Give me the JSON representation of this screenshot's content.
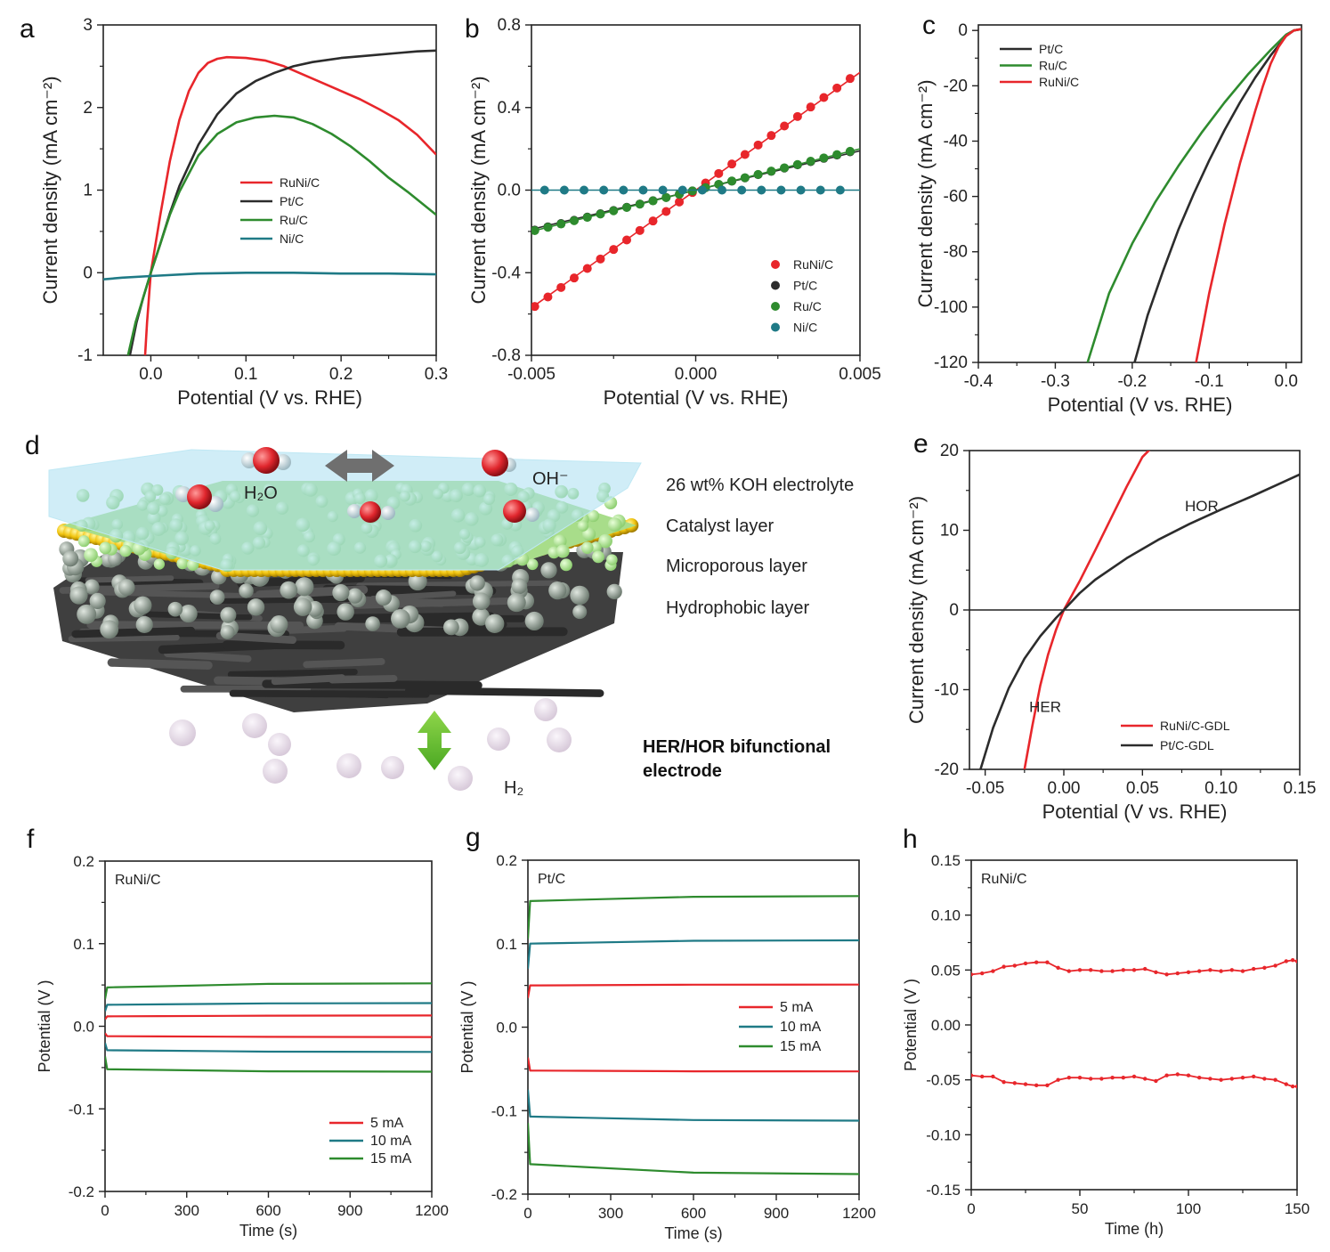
{
  "colors": {
    "red": "#e8262b",
    "black": "#2c2c2c",
    "green": "#2e8b2e",
    "teal": "#1f7a86",
    "axis": "#222222"
  },
  "panel_d": {
    "label": "d",
    "layers": [
      "26 wt% KOH electrolyte",
      "Catalyst layer",
      "Microporous layer",
      "Hydrophobic layer"
    ],
    "h2o": "H₂O",
    "oh": "OH⁻",
    "h2": "H₂",
    "electrode_line1": "HER/HOR bifunctional",
    "electrode_line2": "electrode"
  },
  "chart_data": [
    {
      "id": "a",
      "label": "a",
      "type": "line",
      "xlabel": "Potential (V vs. RHE)",
      "ylabel": "Current density (mA cm⁻²)",
      "xlim": [
        -0.05,
        0.3
      ],
      "ylim": [
        -1,
        3
      ],
      "xticks": [
        "0.0",
        "0.1",
        "0.2",
        "0.3"
      ],
      "xtick_values": [
        0,
        0.1,
        0.2,
        0.3
      ],
      "yticks": [
        "-1",
        "0",
        "1",
        "2",
        "3"
      ],
      "ytick_values": [
        -1,
        0,
        1,
        2,
        3
      ],
      "legend": "center",
      "series": [
        {
          "name": "RuNi/C",
          "color": "red",
          "x": [
            -0.006,
            -0.004,
            0.0,
            0.01,
            0.02,
            0.03,
            0.04,
            0.05,
            0.06,
            0.07,
            0.08,
            0.1,
            0.12,
            0.14,
            0.16,
            0.18,
            0.2,
            0.22,
            0.24,
            0.26,
            0.28,
            0.3
          ],
          "y": [
            -1.0,
            -0.6,
            0.0,
            0.7,
            1.35,
            1.85,
            2.2,
            2.42,
            2.54,
            2.59,
            2.61,
            2.6,
            2.57,
            2.5,
            2.4,
            2.3,
            2.2,
            2.1,
            1.98,
            1.85,
            1.67,
            1.43
          ]
        },
        {
          "name": "Pt/C",
          "color": "black",
          "x": [
            -0.022,
            -0.015,
            -0.008,
            0.0,
            0.01,
            0.02,
            0.03,
            0.05,
            0.07,
            0.09,
            0.11,
            0.13,
            0.15,
            0.17,
            0.2,
            0.23,
            0.26,
            0.28,
            0.3
          ],
          "y": [
            -1.0,
            -0.6,
            -0.3,
            0.0,
            0.35,
            0.72,
            1.05,
            1.55,
            1.92,
            2.17,
            2.32,
            2.42,
            2.5,
            2.55,
            2.6,
            2.63,
            2.66,
            2.68,
            2.69
          ]
        },
        {
          "name": "Ru/C",
          "color": "green",
          "x": [
            -0.024,
            -0.016,
            -0.008,
            0.0,
            0.01,
            0.02,
            0.03,
            0.05,
            0.07,
            0.09,
            0.11,
            0.13,
            0.15,
            0.17,
            0.19,
            0.21,
            0.23,
            0.25,
            0.27,
            0.3
          ],
          "y": [
            -1.0,
            -0.6,
            -0.3,
            0.0,
            0.35,
            0.7,
            0.98,
            1.42,
            1.68,
            1.82,
            1.88,
            1.9,
            1.88,
            1.8,
            1.68,
            1.53,
            1.35,
            1.15,
            0.98,
            0.7
          ]
        },
        {
          "name": "Ni/C",
          "color": "teal",
          "x": [
            -0.05,
            -0.03,
            0.0,
            0.05,
            0.1,
            0.15,
            0.2,
            0.25,
            0.3
          ],
          "y": [
            -0.08,
            -0.06,
            -0.04,
            -0.01,
            0.0,
            0.0,
            -0.01,
            -0.01,
            -0.02
          ]
        }
      ]
    },
    {
      "id": "b",
      "label": "b",
      "type": "scatter",
      "xlabel": "Potential (V vs. RHE)",
      "ylabel": "Current density (mA cm⁻²)",
      "xlim": [
        -0.005,
        0.005
      ],
      "ylim": [
        -0.8,
        0.8
      ],
      "xticks": [
        "-0.005",
        "0.000",
        "0.005"
      ],
      "xtick_values": [
        -0.005,
        0,
        0.005
      ],
      "yticks": [
        "-0.8",
        "-0.4",
        "0.0",
        "0.4",
        "0.8"
      ],
      "ytick_values": [
        -0.8,
        -0.4,
        0,
        0.4,
        0.8
      ],
      "legend": "bottom-right",
      "series": [
        {
          "name": "RuNi/C",
          "color": "red",
          "slope": 115,
          "fit_slope": 114,
          "x_start": -0.0049,
          "x_end": 0.0049,
          "step": 0.0004
        },
        {
          "name": "Pt/C",
          "color": "black",
          "slope": 39.5,
          "fit_slope": 38,
          "x_start": -0.0049,
          "x_end": 0.0049,
          "step": 0.0004
        },
        {
          "name": "Ru/C",
          "color": "green",
          "slope": 40,
          "fit_slope": 40,
          "x_start": -0.0049,
          "x_end": 0.0049,
          "step": 0.0004
        },
        {
          "name": "Ni/C",
          "color": "teal",
          "slope": 0,
          "fit_slope": 0,
          "x_start": -0.0046,
          "x_end": 0.0044,
          "step": 0.0006
        }
      ]
    },
    {
      "id": "c",
      "label": "c",
      "type": "line",
      "xlabel": "Potential (V vs. RHE)",
      "ylabel": "Current density (mA cm⁻²)",
      "xlim": [
        -0.4,
        0.02
      ],
      "ylim": [
        -120,
        2
      ],
      "xticks": [
        "-0.4",
        "-0.3",
        "-0.2",
        "-0.1",
        "0.0"
      ],
      "xtick_values": [
        -0.4,
        -0.3,
        -0.2,
        -0.1,
        0
      ],
      "yticks": [
        "0",
        "-20",
        "-40",
        "-60",
        "-80",
        "-100",
        "-120"
      ],
      "ytick_values": [
        0,
        -20,
        -40,
        -60,
        -80,
        -100,
        -120
      ],
      "legend": "top-left",
      "series": [
        {
          "name": "Pt/C",
          "color": "black",
          "x": [
            0.02,
            0.01,
            0.0,
            -0.02,
            -0.04,
            -0.06,
            -0.08,
            -0.1,
            -0.12,
            -0.14,
            -0.16,
            -0.18,
            -0.197
          ],
          "y": [
            0.5,
            0,
            -2,
            -9,
            -17,
            -26,
            -36,
            -47,
            -59,
            -72,
            -87,
            -103,
            -120
          ]
        },
        {
          "name": "Ru/C",
          "color": "green",
          "x": [
            0.02,
            0.01,
            0.0,
            -0.02,
            -0.05,
            -0.08,
            -0.11,
            -0.14,
            -0.17,
            -0.2,
            -0.23,
            -0.258
          ],
          "y": [
            0.5,
            0,
            -1.5,
            -7,
            -16,
            -26,
            -37,
            -49,
            -62,
            -77,
            -95,
            -120
          ]
        },
        {
          "name": "RuNi/C",
          "color": "red",
          "x": [
            0.02,
            0.01,
            0.0,
            -0.01,
            -0.02,
            -0.03,
            -0.04,
            -0.06,
            -0.08,
            -0.1,
            -0.117
          ],
          "y": [
            0.5,
            0,
            -2,
            -6,
            -12,
            -20,
            -29,
            -48,
            -70,
            -95,
            -120
          ]
        }
      ]
    },
    {
      "id": "e",
      "label": "e",
      "type": "line",
      "xlabel": "Potential (V vs. RHE)",
      "ylabel": "Current density (mA cm⁻²)",
      "xlim": [
        -0.06,
        0.15
      ],
      "ylim": [
        -20,
        20
      ],
      "xticks": [
        "-0.05",
        "0.00",
        "0.05",
        "0.10",
        "0.15"
      ],
      "xtick_values": [
        -0.05,
        0,
        0.05,
        0.1,
        0.15
      ],
      "yticks": [
        "20",
        "10",
        "0",
        "-10",
        "-20"
      ],
      "ytick_values": [
        20,
        10,
        0,
        -10,
        -20
      ],
      "annotations": [
        "HOR",
        "HER"
      ],
      "legend": "bottom-right",
      "series": [
        {
          "name": "RuNi/C-GDL",
          "color": "red",
          "x": [
            -0.025,
            -0.02,
            -0.015,
            -0.01,
            -0.005,
            0.0,
            0.01,
            0.02,
            0.03,
            0.04,
            0.05,
            0.055
          ],
          "y": [
            -20,
            -14.5,
            -9.5,
            -5.6,
            -2.5,
            0,
            3.6,
            7.5,
            11.5,
            15.5,
            19.2,
            20.2
          ]
        },
        {
          "name": "Pt/C-GDL",
          "color": "black",
          "x": [
            -0.053,
            -0.045,
            -0.035,
            -0.025,
            -0.015,
            -0.005,
            0.0,
            0.01,
            0.02,
            0.04,
            0.06,
            0.08,
            0.1,
            0.12,
            0.14,
            0.15
          ],
          "y": [
            -20,
            -14.8,
            -9.8,
            -6.1,
            -3.3,
            -1.0,
            0,
            2.1,
            3.8,
            6.5,
            8.8,
            10.8,
            12.6,
            14.3,
            16.1,
            17.0
          ]
        }
      ]
    },
    {
      "id": "f",
      "label": "f",
      "type": "line",
      "title": "RuNi/C",
      "xlabel": "Time (s)",
      "ylabel": "Potential (V )",
      "xlim": [
        0,
        1200
      ],
      "ylim": [
        -0.2,
        0.2
      ],
      "xticks": [
        "0",
        "300",
        "600",
        "900",
        "1200"
      ],
      "xtick_values": [
        0,
        300,
        600,
        900,
        1200
      ],
      "yticks": [
        "0.2",
        "0.1",
        "0.0",
        "-0.1",
        "-0.2"
      ],
      "ytick_values": [
        0.2,
        0.1,
        0,
        -0.1,
        -0.2
      ],
      "legend": "bottom-right",
      "series": [
        {
          "name": "5 mA",
          "color": "red",
          "upper": {
            "start": 0.012,
            "end": 0.013
          },
          "lower": {
            "start": -0.012,
            "end": -0.013
          }
        },
        {
          "name": "10 mA",
          "color": "teal",
          "upper": {
            "start": 0.026,
            "end": 0.028
          },
          "lower": {
            "start": -0.029,
            "end": -0.031
          }
        },
        {
          "name": "15 mA",
          "color": "green",
          "upper": {
            "start": 0.047,
            "end": 0.052
          },
          "lower": {
            "start": -0.052,
            "end": -0.055
          }
        }
      ]
    },
    {
      "id": "g",
      "label": "g",
      "type": "line",
      "title": "Pt/C",
      "xlabel": "Time (s)",
      "ylabel": "Potential (V )",
      "xlim": [
        0,
        1200
      ],
      "ylim": [
        -0.2,
        0.2
      ],
      "xticks": [
        "0",
        "300",
        "600",
        "900",
        "1200"
      ],
      "xtick_values": [
        0,
        300,
        600,
        900,
        1200
      ],
      "yticks": [
        "0.2",
        "0.1",
        "0.0",
        "-0.1",
        "-0.2"
      ],
      "ytick_values": [
        0.2,
        0.1,
        0,
        -0.1,
        -0.2
      ],
      "legend": "center-right",
      "series": [
        {
          "name": "5 mA",
          "color": "red",
          "upper": {
            "start": 0.05,
            "end": 0.051
          },
          "lower": {
            "start": -0.052,
            "end": -0.053
          }
        },
        {
          "name": "10 mA",
          "color": "teal",
          "upper": {
            "start": 0.1,
            "end": 0.104
          },
          "lower": {
            "start": -0.107,
            "end": -0.112
          }
        },
        {
          "name": "15 mA",
          "color": "green",
          "upper": {
            "start": 0.151,
            "end": 0.157
          },
          "lower": {
            "start": -0.164,
            "end": -0.176
          }
        }
      ]
    },
    {
      "id": "h",
      "label": "h",
      "type": "line",
      "title": "RuNi/C",
      "xlabel": "Time (h)",
      "ylabel": "Potential (V )",
      "xlim": [
        0,
        150
      ],
      "ylim": [
        -0.15,
        0.15
      ],
      "xticks": [
        "0",
        "50",
        "100",
        "150"
      ],
      "xtick_values": [
        0,
        50,
        100,
        150
      ],
      "yticks": [
        "0.15",
        "0.10",
        "0.05",
        "0.00",
        "-0.05",
        "-0.10",
        "-0.15"
      ],
      "ytick_values": [
        0.15,
        0.1,
        0.05,
        0,
        -0.05,
        -0.1,
        -0.15
      ],
      "series": [
        {
          "name": "upper",
          "color": "red",
          "x": [
            0,
            5,
            10,
            15,
            20,
            25,
            30,
            35,
            40,
            45,
            50,
            55,
            60,
            65,
            70,
            75,
            80,
            85,
            90,
            95,
            100,
            105,
            110,
            115,
            120,
            125,
            130,
            135,
            140,
            145,
            148,
            150
          ],
          "y": [
            0.046,
            0.047,
            0.049,
            0.053,
            0.054,
            0.056,
            0.057,
            0.057,
            0.052,
            0.049,
            0.05,
            0.05,
            0.049,
            0.049,
            0.05,
            0.05,
            0.051,
            0.048,
            0.046,
            0.047,
            0.048,
            0.049,
            0.05,
            0.049,
            0.05,
            0.049,
            0.051,
            0.052,
            0.054,
            0.058,
            0.059,
            0.058
          ]
        },
        {
          "name": "lower",
          "color": "red",
          "x": [
            0,
            5,
            10,
            15,
            20,
            25,
            30,
            35,
            40,
            45,
            50,
            55,
            60,
            65,
            70,
            75,
            80,
            85,
            90,
            95,
            100,
            105,
            110,
            115,
            120,
            125,
            130,
            135,
            140,
            145,
            148,
            150
          ],
          "y": [
            -0.046,
            -0.047,
            -0.047,
            -0.052,
            -0.053,
            -0.054,
            -0.055,
            -0.055,
            -0.05,
            -0.048,
            -0.048,
            -0.049,
            -0.049,
            -0.048,
            -0.048,
            -0.047,
            -0.049,
            -0.051,
            -0.046,
            -0.045,
            -0.046,
            -0.048,
            -0.049,
            -0.05,
            -0.049,
            -0.048,
            -0.047,
            -0.049,
            -0.05,
            -0.054,
            -0.056,
            -0.056
          ]
        }
      ]
    }
  ]
}
